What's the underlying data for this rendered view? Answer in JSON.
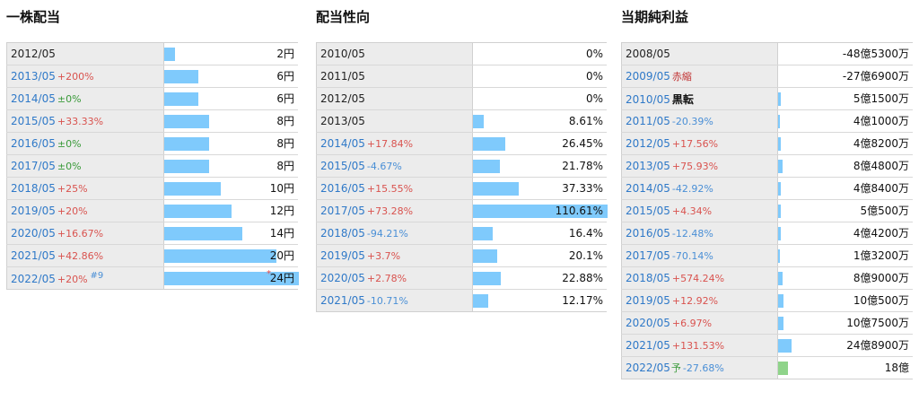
{
  "panels": [
    {
      "title": "一株配当",
      "rows": [
        {
          "period": "2012/05",
          "change": "",
          "cls": "",
          "value": "2円",
          "fraction": 0.083
        },
        {
          "period": "2013/05",
          "change": "+200%",
          "cls": "up",
          "value": "6円",
          "fraction": 0.25
        },
        {
          "period": "2014/05",
          "change": "±0%",
          "cls": "flat",
          "value": "6円",
          "fraction": 0.25
        },
        {
          "period": "2015/05",
          "change": "+33.33%",
          "cls": "up",
          "value": "8円",
          "fraction": 0.333
        },
        {
          "period": "2016/05",
          "change": "±0%",
          "cls": "flat",
          "value": "8円",
          "fraction": 0.333
        },
        {
          "period": "2017/05",
          "change": "±0%",
          "cls": "flat",
          "value": "8円",
          "fraction": 0.333
        },
        {
          "period": "2018/05",
          "change": "+25%",
          "cls": "up",
          "value": "10円",
          "fraction": 0.417
        },
        {
          "period": "2019/05",
          "change": "+20%",
          "cls": "up",
          "value": "12円",
          "fraction": 0.5
        },
        {
          "period": "2020/05",
          "change": "+16.67%",
          "cls": "up",
          "value": "14円",
          "fraction": 0.583
        },
        {
          "period": "2021/05",
          "change": "+42.86%",
          "cls": "up",
          "value": "20円",
          "fraction": 0.833
        },
        {
          "period": "2022/05",
          "change": "+20%",
          "cls": "up",
          "value": "24円",
          "fraction": 1.0,
          "note": "#9",
          "star": "*"
        }
      ]
    },
    {
      "title": "配当性向",
      "rows": [
        {
          "period": "2010/05",
          "change": "",
          "cls": "",
          "value": "0%",
          "fraction": 0
        },
        {
          "period": "2011/05",
          "change": "",
          "cls": "",
          "value": "0%",
          "fraction": 0
        },
        {
          "period": "2012/05",
          "change": "",
          "cls": "",
          "value": "0%",
          "fraction": 0
        },
        {
          "period": "2013/05",
          "change": "",
          "cls": "",
          "value": "8.61%",
          "fraction": 0.078
        },
        {
          "period": "2014/05",
          "change": "+17.84%",
          "cls": "up",
          "value": "26.45%",
          "fraction": 0.239
        },
        {
          "period": "2015/05",
          "change": "-4.67%",
          "cls": "down",
          "value": "21.78%",
          "fraction": 0.197
        },
        {
          "period": "2016/05",
          "change": "+15.55%",
          "cls": "up",
          "value": "37.33%",
          "fraction": 0.337
        },
        {
          "period": "2017/05",
          "change": "+73.28%",
          "cls": "up",
          "value": "110.61%",
          "fraction": 1.0
        },
        {
          "period": "2018/05",
          "change": "-94.21%",
          "cls": "down",
          "value": "16.4%",
          "fraction": 0.148
        },
        {
          "period": "2019/05",
          "change": "+3.7%",
          "cls": "up",
          "value": "20.1%",
          "fraction": 0.182
        },
        {
          "period": "2020/05",
          "change": "+2.78%",
          "cls": "up",
          "value": "22.88%",
          "fraction": 0.207
        },
        {
          "period": "2021/05",
          "change": "-10.71%",
          "cls": "down",
          "value": "12.17%",
          "fraction": 0.11
        }
      ]
    },
    {
      "title": "当期純利益",
      "rows": [
        {
          "period": "2008/05",
          "change": "",
          "cls": "",
          "value": "-48億5300万",
          "fraction": 0
        },
        {
          "period": "2009/05",
          "special": "赤縮",
          "specialCls": "red",
          "value": "-27億6900万",
          "fraction": 0
        },
        {
          "period": "2010/05",
          "special": "黒転",
          "specialCls": "black",
          "value": "5億1500万",
          "fraction": 0.021
        },
        {
          "period": "2011/05",
          "change": "-20.39%",
          "cls": "down",
          "value": "4億1000万",
          "fraction": 0.016
        },
        {
          "period": "2012/05",
          "change": "+17.56%",
          "cls": "up",
          "value": "4億8200万",
          "fraction": 0.019
        },
        {
          "period": "2013/05",
          "change": "+75.93%",
          "cls": "up",
          "value": "8億4800万",
          "fraction": 0.034
        },
        {
          "period": "2014/05",
          "change": "-42.92%",
          "cls": "down",
          "value": "4億8400万",
          "fraction": 0.019
        },
        {
          "period": "2015/05",
          "change": "+4.34%",
          "cls": "up",
          "value": "5億500万",
          "fraction": 0.02
        },
        {
          "period": "2016/05",
          "change": "-12.48%",
          "cls": "down",
          "value": "4億4200万",
          "fraction": 0.018
        },
        {
          "period": "2017/05",
          "change": "-70.14%",
          "cls": "down",
          "value": "1億3200万",
          "fraction": 0.005
        },
        {
          "period": "2018/05",
          "change": "+574.24%",
          "cls": "up",
          "value": "8億9000万",
          "fraction": 0.036
        },
        {
          "period": "2019/05",
          "change": "+12.92%",
          "cls": "up",
          "value": "10億500万",
          "fraction": 0.04
        },
        {
          "period": "2020/05",
          "change": "+6.97%",
          "cls": "up",
          "value": "10億7500万",
          "fraction": 0.043
        },
        {
          "period": "2021/05",
          "change": "+131.53%",
          "cls": "up",
          "value": "24億8900万",
          "fraction": 0.1
        },
        {
          "period": "2022/05",
          "forecast": "予",
          "change": "-27.68%",
          "cls": "down",
          "value": "18億",
          "fraction": 0.072,
          "green": true
        }
      ]
    }
  ]
}
